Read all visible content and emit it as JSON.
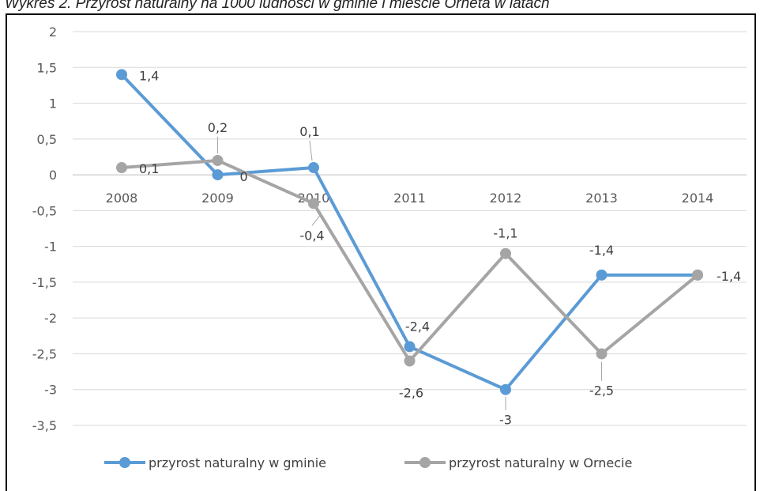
{
  "caption": "Wykres 2. Przyrost naturalny na 1000 ludności w gminie i mieście Orneta w latach",
  "chart_data": {
    "type": "line",
    "categories": [
      "2008",
      "2009",
      "2010",
      "2011",
      "2012",
      "2013",
      "2014"
    ],
    "ylim": [
      -3.5,
      2
    ],
    "yticks": [
      "2",
      "1,5",
      "1",
      "0,5",
      "0",
      "-0,5",
      "-1",
      "-1,5",
      "-2",
      "-2,5",
      "-3",
      "-3,5"
    ],
    "grid": true,
    "legend": "bottom",
    "series": [
      {
        "name": "przyrost naturalny w gminie",
        "color": "#5b9bd5",
        "values": [
          1.4,
          0,
          0.1,
          -2.4,
          -3,
          -1.4,
          -1.4
        ],
        "labels": [
          "1,4",
          "0",
          "0,1",
          "-2,4",
          "-3",
          "-1,4",
          "-1,4"
        ]
      },
      {
        "name": "przyrost naturalny w Ornecie",
        "color": "#a5a5a5",
        "values": [
          0.1,
          0.2,
          -0.4,
          -2.6,
          -1.1,
          -2.5,
          -1.4
        ],
        "labels": [
          "0,1",
          "0,2",
          "-0,4",
          "-2,6",
          "-1,1",
          "-2,5",
          "-1,4"
        ]
      }
    ]
  }
}
